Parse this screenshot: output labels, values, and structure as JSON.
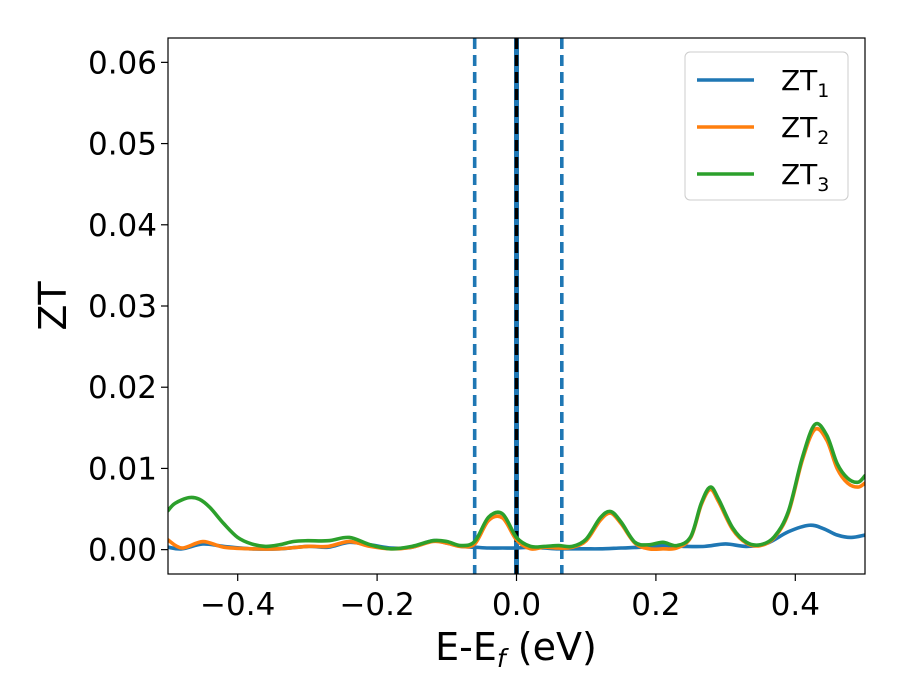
{
  "chart_data": {
    "type": "line",
    "xlabel_main": "E-E",
    "xlabel_sub": "f",
    "xlabel_unit": " (eV)",
    "ylabel": "ZT",
    "xlim": [
      -0.5,
      0.5
    ],
    "ylim": [
      -0.003,
      0.063
    ],
    "xticks": [
      -0.4,
      -0.2,
      0.0,
      0.2,
      0.4
    ],
    "xtick_labels": [
      "−0.4",
      "−0.2",
      "0.0",
      "0.2",
      "0.4"
    ],
    "yticks": [
      0.0,
      0.01,
      0.02,
      0.03,
      0.04,
      0.05,
      0.06
    ],
    "ytick_labels": [
      "0.00",
      "0.01",
      "0.02",
      "0.03",
      "0.04",
      "0.05",
      "0.06"
    ],
    "grid": false,
    "legend_position": "top-right",
    "vlines": [
      {
        "x": -0.06,
        "style": "dashed",
        "color": "#1f77b4"
      },
      {
        "x": 0.0,
        "style": "solid",
        "color": "#1f77b4"
      },
      {
        "x": 0.0,
        "style": "dashed",
        "color": "#000000"
      },
      {
        "x": 0.065,
        "style": "dashed",
        "color": "#1f77b4"
      }
    ],
    "series": [
      {
        "name": "ZT",
        "name_sub": "1",
        "color": "#1f77b4",
        "x": [
          -0.5,
          -0.48,
          -0.45,
          -0.42,
          -0.38,
          -0.34,
          -0.3,
          -0.27,
          -0.24,
          -0.21,
          -0.18,
          -0.15,
          -0.12,
          -0.1,
          -0.08,
          -0.06,
          -0.04,
          -0.02,
          0.0,
          0.02,
          0.04,
          0.06,
          0.08,
          0.1,
          0.12,
          0.15,
          0.18,
          0.21,
          0.24,
          0.27,
          0.3,
          0.33,
          0.36,
          0.39,
          0.42,
          0.44,
          0.46,
          0.48,
          0.5
        ],
        "y": [
          0.0003,
          0.0001,
          0.0007,
          0.0004,
          0.0001,
          0.0001,
          0.0004,
          0.0003,
          0.0009,
          0.0006,
          0.0002,
          0.0003,
          0.0011,
          0.0008,
          0.0004,
          0.0003,
          0.0002,
          0.0002,
          0.0002,
          0.0003,
          0.0002,
          0.0001,
          0.0001,
          0.0001,
          0.0001,
          0.0002,
          0.0003,
          0.0005,
          0.0004,
          0.0004,
          0.0007,
          0.0004,
          0.0008,
          0.0022,
          0.003,
          0.0026,
          0.0018,
          0.0015,
          0.0018
        ]
      },
      {
        "name": "ZT",
        "name_sub": "2",
        "color": "#ff7f0e",
        "x": [
          -0.5,
          -0.48,
          -0.45,
          -0.42,
          -0.38,
          -0.34,
          -0.3,
          -0.27,
          -0.24,
          -0.21,
          -0.18,
          -0.15,
          -0.12,
          -0.1,
          -0.08,
          -0.06,
          -0.04,
          -0.02,
          0.0,
          0.02,
          0.04,
          0.06,
          0.08,
          0.1,
          0.12,
          0.135,
          0.15,
          0.17,
          0.19,
          0.21,
          0.23,
          0.25,
          0.265,
          0.278,
          0.29,
          0.31,
          0.33,
          0.35,
          0.37,
          0.39,
          0.41,
          0.428,
          0.445,
          0.46,
          0.475,
          0.49,
          0.5
        ],
        "y": [
          0.0012,
          0.0002,
          0.001,
          0.0003,
          0.0001,
          0.0001,
          0.0004,
          0.0004,
          0.001,
          0.0004,
          0.0001,
          0.0003,
          0.001,
          0.0008,
          0.0004,
          0.0007,
          0.0036,
          0.0039,
          0.0012,
          0.0001,
          0.0003,
          0.0002,
          0.0003,
          0.0011,
          0.0036,
          0.0045,
          0.0032,
          0.0008,
          0.0001,
          0.0001,
          0.0002,
          0.0015,
          0.0055,
          0.0074,
          0.0059,
          0.0025,
          0.0008,
          0.0005,
          0.0015,
          0.0045,
          0.011,
          0.0148,
          0.0135,
          0.01,
          0.0082,
          0.0077,
          0.0082
        ]
      },
      {
        "name": "ZT",
        "name_sub": "3",
        "color": "#2ca02c",
        "x": [
          -0.5,
          -0.49,
          -0.47,
          -0.455,
          -0.44,
          -0.42,
          -0.4,
          -0.38,
          -0.36,
          -0.34,
          -0.32,
          -0.3,
          -0.27,
          -0.24,
          -0.21,
          -0.18,
          -0.15,
          -0.12,
          -0.1,
          -0.08,
          -0.06,
          -0.04,
          -0.02,
          0.0,
          0.02,
          0.04,
          0.06,
          0.08,
          0.1,
          0.12,
          0.135,
          0.15,
          0.17,
          0.19,
          0.21,
          0.23,
          0.25,
          0.265,
          0.278,
          0.29,
          0.31,
          0.33,
          0.35,
          0.37,
          0.39,
          0.41,
          0.428,
          0.445,
          0.46,
          0.475,
          0.49,
          0.5
        ],
        "y": [
          0.0048,
          0.0057,
          0.0064,
          0.0062,
          0.0052,
          0.0032,
          0.0015,
          0.0007,
          0.0004,
          0.0006,
          0.001,
          0.0011,
          0.0011,
          0.0015,
          0.0006,
          0.0001,
          0.0004,
          0.0011,
          0.001,
          0.0005,
          0.001,
          0.004,
          0.0044,
          0.0015,
          0.0004,
          0.0004,
          0.0005,
          0.0004,
          0.0013,
          0.0039,
          0.0047,
          0.0034,
          0.0009,
          0.0006,
          0.0009,
          0.0005,
          0.0016,
          0.0057,
          0.0077,
          0.0062,
          0.0027,
          0.0009,
          0.0006,
          0.0016,
          0.0047,
          0.0113,
          0.0154,
          0.0141,
          0.0106,
          0.0088,
          0.0083,
          0.0091
        ]
      }
    ]
  }
}
